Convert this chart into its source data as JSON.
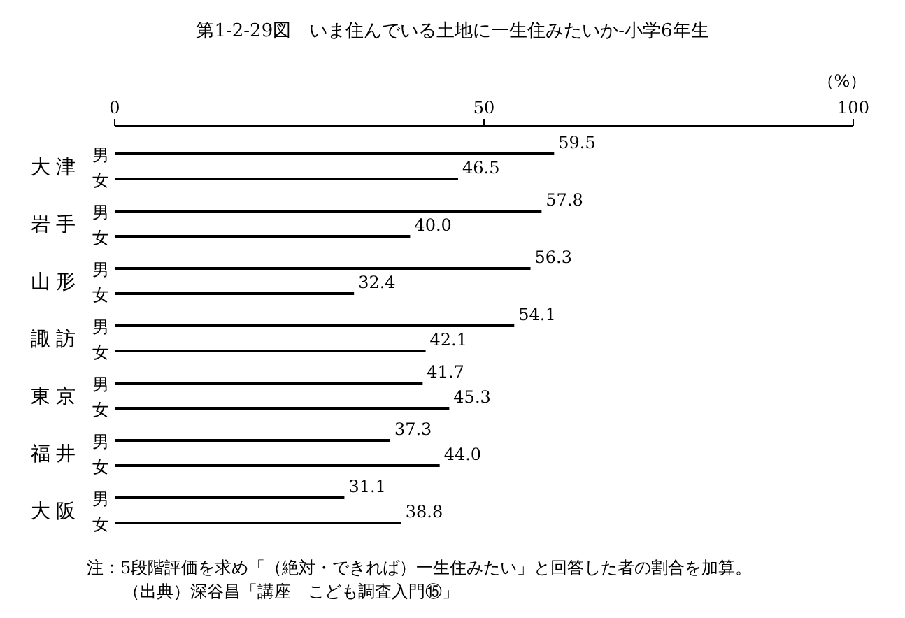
{
  "chart_data": {
    "type": "bar",
    "orientation": "horizontal",
    "title": "第1-2-29図　いま住んでいる土地に一生住みたいか-小学6年生",
    "xlabel": "（%）",
    "categories": [
      "大津",
      "岩手",
      "山形",
      "諏訪",
      "東京",
      "福井",
      "大阪"
    ],
    "series": [
      {
        "name": "男",
        "color": "#000000",
        "values": [
          59.5,
          57.8,
          56.3,
          54.1,
          41.7,
          37.3,
          31.1
        ],
        "value_labels": [
          "59.5",
          "57.8",
          "56.3",
          "54.1",
          "41.7",
          "37.3",
          "31.1"
        ]
      },
      {
        "name": "女",
        "color": "#000000",
        "values": [
          46.5,
          40.0,
          32.4,
          42.1,
          45.3,
          44.0,
          38.8
        ],
        "value_labels": [
          "46.5",
          "40.0",
          "32.4",
          "42.1",
          "45.3",
          "44.0",
          "38.8"
        ]
      }
    ],
    "xlim": [
      0,
      100
    ],
    "xticks": [
      0,
      50,
      100
    ],
    "grid": false,
    "annotations": [
      "注：5段階評価を求め「（絶対・できれば）一生住みたい」と回答した者の割合を加算。",
      "（出典）深谷昌「講座　こども調査入門⑮」"
    ]
  }
}
